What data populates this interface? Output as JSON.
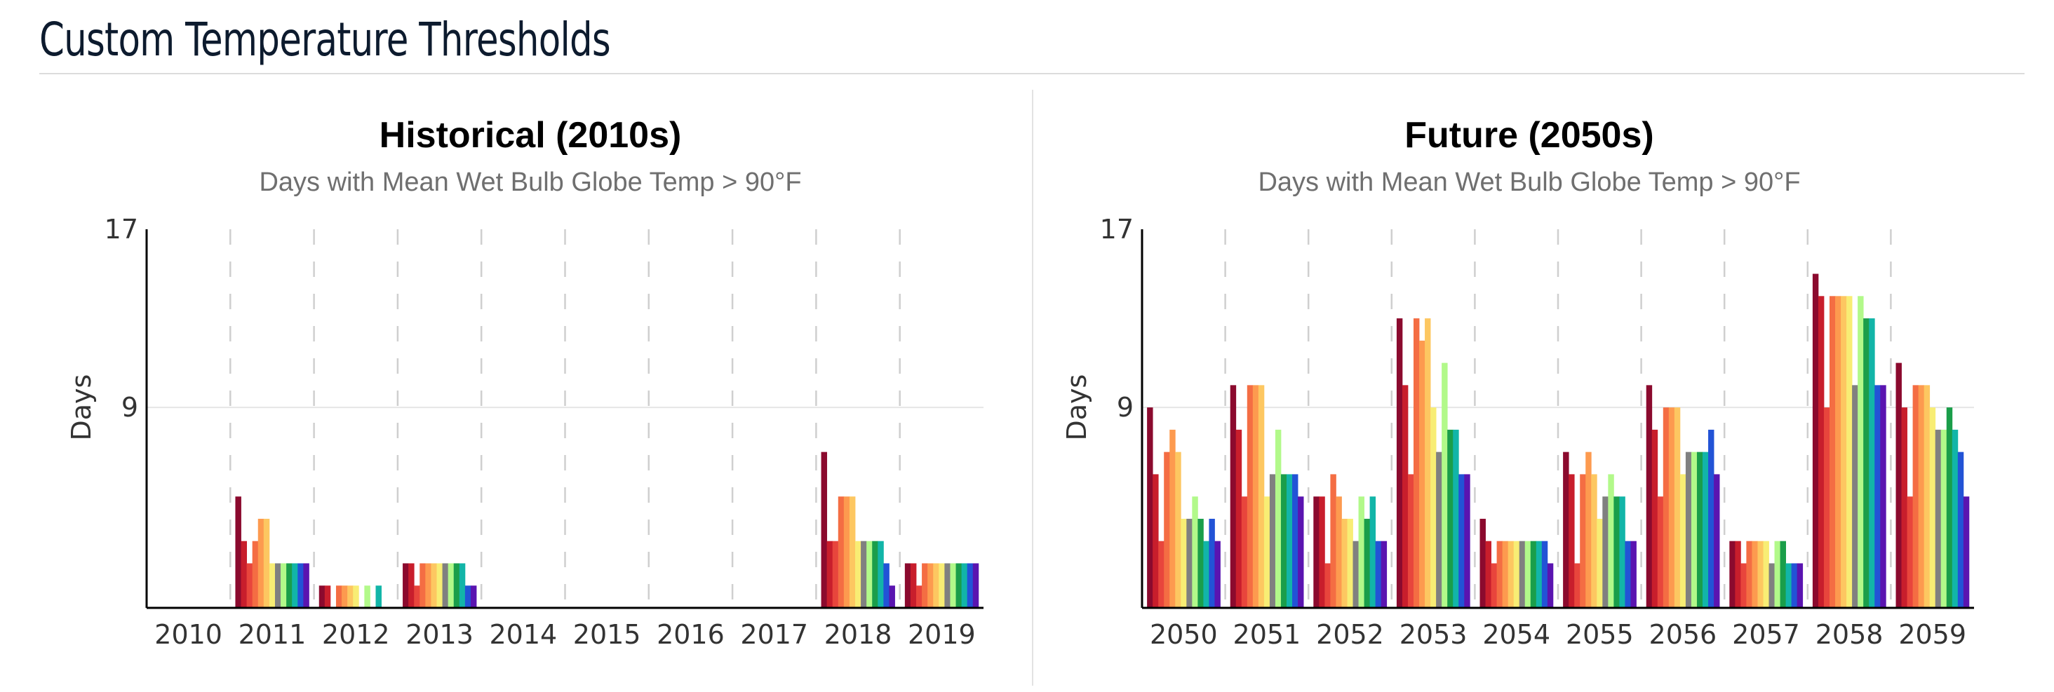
{
  "page": {
    "section_title": "Custom Temperature Thresholds"
  },
  "chart_data": [
    {
      "type": "bar",
      "title": "Historical (2010s)",
      "subtitle": "Days with Mean Wet Bulb Globe Temp > 90°F",
      "ylabel": "Days",
      "xlabel": "",
      "ylim": [
        0,
        17
      ],
      "yticks": [
        9,
        17
      ],
      "grid": "horizontal at 9; dashed vertical between years",
      "categories": [
        "2010",
        "2011",
        "2012",
        "2013",
        "2014",
        "2015",
        "2016",
        "2017",
        "2018",
        "2019"
      ],
      "series": [
        {
          "color": "#8b0a2e",
          "values": [
            0,
            5,
            1,
            2,
            0,
            0,
            0,
            0,
            7,
            2
          ]
        },
        {
          "color": "#c81e2c",
          "values": [
            0,
            3,
            1,
            2,
            0,
            0,
            0,
            0,
            3,
            2
          ]
        },
        {
          "color": "#e8453c",
          "values": [
            0,
            2,
            0,
            1,
            0,
            0,
            0,
            0,
            3,
            1
          ]
        },
        {
          "color": "#f46d43",
          "values": [
            0,
            3,
            1,
            2,
            0,
            0,
            0,
            0,
            5,
            2
          ]
        },
        {
          "color": "#fd9a4f",
          "values": [
            0,
            4,
            1,
            2,
            0,
            0,
            0,
            0,
            5,
            2
          ]
        },
        {
          "color": "#fdc761",
          "values": [
            0,
            4,
            1,
            2,
            0,
            0,
            0,
            0,
            5,
            2
          ]
        },
        {
          "color": "#f8ed74",
          "values": [
            0,
            2,
            1,
            2,
            0,
            0,
            0,
            0,
            3,
            2
          ]
        },
        {
          "color": "#808080",
          "values": [
            0,
            2,
            0,
            2,
            0,
            0,
            0,
            0,
            3,
            2
          ]
        },
        {
          "color": "#b2f98a",
          "values": [
            0,
            2,
            1,
            2,
            0,
            0,
            0,
            0,
            3,
            2
          ]
        },
        {
          "color": "#1a9e4a",
          "values": [
            0,
            2,
            0,
            2,
            0,
            0,
            0,
            0,
            3,
            2
          ]
        },
        {
          "color": "#12b5a8",
          "values": [
            0,
            2,
            1,
            2,
            0,
            0,
            0,
            0,
            3,
            2
          ]
        },
        {
          "color": "#2253d6",
          "values": [
            0,
            2,
            0,
            1,
            0,
            0,
            0,
            0,
            2,
            2
          ]
        },
        {
          "color": "#5a14b0",
          "values": [
            0,
            2,
            0,
            1,
            0,
            0,
            0,
            0,
            1,
            2
          ]
        }
      ]
    },
    {
      "type": "bar",
      "title": "Future (2050s)",
      "subtitle": "Days with Mean Wet Bulb Globe Temp > 90°F",
      "ylabel": "Days",
      "xlabel": "",
      "ylim": [
        0,
        17
      ],
      "yticks": [
        9,
        17
      ],
      "grid": "horizontal at 9; dashed vertical between years",
      "categories": [
        "2050",
        "2051",
        "2052",
        "2053",
        "2054",
        "2055",
        "2056",
        "2057",
        "2058",
        "2059"
      ],
      "series": [
        {
          "color": "#8b0a2e",
          "values": [
            9,
            10,
            5,
            13,
            4,
            7,
            10,
            3,
            15,
            11
          ]
        },
        {
          "color": "#c81e2c",
          "values": [
            6,
            8,
            5,
            10,
            3,
            6,
            8,
            3,
            14,
            9
          ]
        },
        {
          "color": "#e8453c",
          "values": [
            3,
            5,
            2,
            6,
            2,
            2,
            5,
            2,
            9,
            5
          ]
        },
        {
          "color": "#f46d43",
          "values": [
            7,
            10,
            6,
            13,
            3,
            6,
            9,
            3,
            14,
            10
          ]
        },
        {
          "color": "#fd9a4f",
          "values": [
            8,
            10,
            5,
            12,
            3,
            7,
            9,
            3,
            14,
            10
          ]
        },
        {
          "color": "#fdc761",
          "values": [
            7,
            10,
            4,
            13,
            3,
            6,
            9,
            3,
            14,
            10
          ]
        },
        {
          "color": "#f8ed74",
          "values": [
            4,
            5,
            4,
            9,
            3,
            4,
            6,
            3,
            14,
            9
          ]
        },
        {
          "color": "#808080",
          "values": [
            4,
            6,
            3,
            7,
            3,
            5,
            7,
            2,
            10,
            8
          ]
        },
        {
          "color": "#b2f98a",
          "values": [
            5,
            8,
            5,
            11,
            3,
            6,
            7,
            3,
            14,
            8
          ]
        },
        {
          "color": "#1a9e4a",
          "values": [
            4,
            6,
            4,
            8,
            3,
            5,
            7,
            3,
            13,
            9
          ]
        },
        {
          "color": "#12b5a8",
          "values": [
            3,
            6,
            5,
            8,
            3,
            5,
            7,
            2,
            13,
            8
          ]
        },
        {
          "color": "#2253d6",
          "values": [
            4,
            6,
            3,
            6,
            3,
            3,
            8,
            2,
            10,
            7
          ]
        },
        {
          "color": "#5a14b0",
          "values": [
            3,
            5,
            3,
            6,
            2,
            3,
            6,
            2,
            10,
            5
          ]
        }
      ]
    }
  ]
}
